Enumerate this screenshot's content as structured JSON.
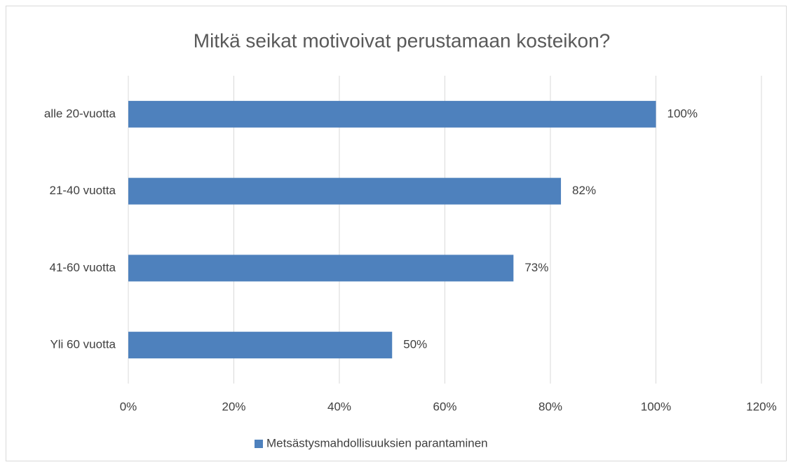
{
  "chart_data": {
    "type": "hbar",
    "title": "Mitkä seikat motivoivat perustamaan kosteikon?",
    "categories": [
      "alle 20-vuotta",
      "21-40 vuotta",
      "41-60 vuotta",
      "Yli 60 vuotta"
    ],
    "series": [
      {
        "name": "Metsästysmahdollisuuksien parantaminen",
        "color": "#4e81bd",
        "values": [
          100,
          82,
          73,
          50
        ],
        "value_labels": [
          "100%",
          "82%",
          "73%",
          "50%"
        ]
      }
    ],
    "xlim": [
      0,
      120
    ],
    "xticks": [
      {
        "value": 0,
        "label": "0%"
      },
      {
        "value": 20,
        "label": "20%"
      },
      {
        "value": 40,
        "label": "40%"
      },
      {
        "value": 60,
        "label": "60%"
      },
      {
        "value": 80,
        "label": "80%"
      },
      {
        "value": 100,
        "label": "100%"
      },
      {
        "value": 120,
        "label": "120%"
      }
    ],
    "grid": true,
    "legend": "bottom"
  }
}
